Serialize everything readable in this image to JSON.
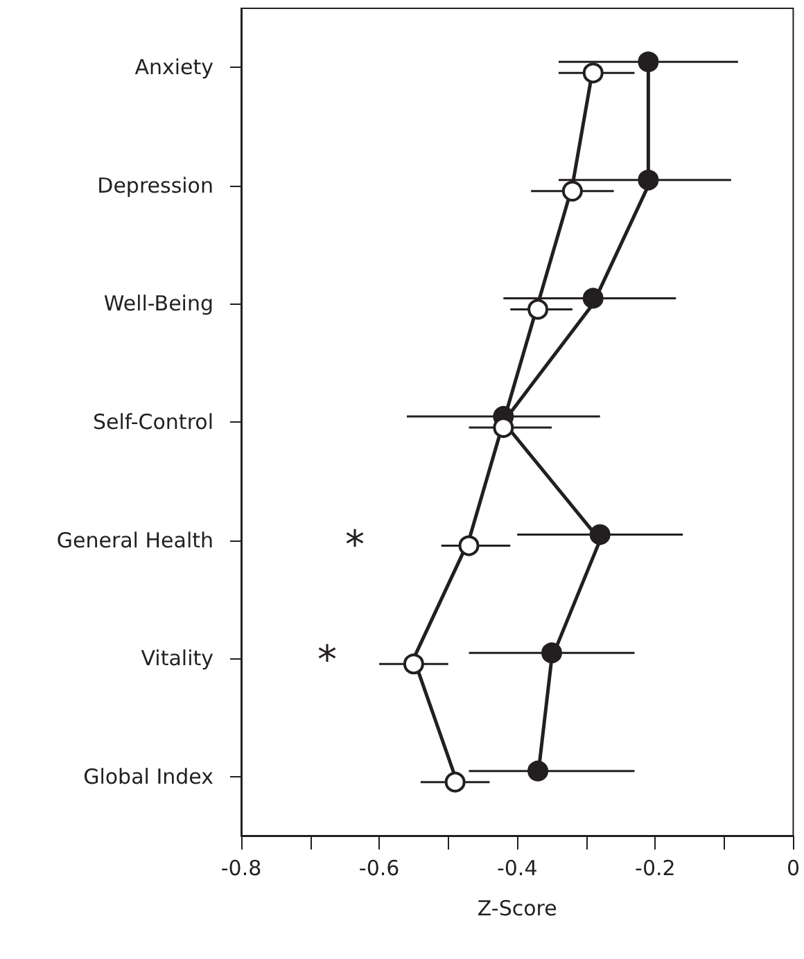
{
  "chart_data": {
    "type": "line",
    "orientation": "horizontal",
    "categories": [
      "Anxiety",
      "Depression",
      "Well-Being",
      "Self-Control",
      "General Health",
      "Vitality",
      "Global Index"
    ],
    "series": [
      {
        "color": "#231f20",
        "values": [
          -0.21,
          -0.21,
          -0.29,
          -0.42,
          -0.28,
          -0.35,
          -0.37
        ],
        "errors": [
          [
            -0.34,
            -0.08
          ],
          [
            -0.34,
            -0.09
          ],
          [
            -0.42,
            -0.17
          ],
          [
            -0.56,
            -0.28
          ],
          [
            -0.4,
            -0.16
          ],
          [
            -0.47,
            -0.23
          ],
          [
            -0.47,
            -0.23
          ]
        ]
      },
      {
        "color": "#ffffff",
        "values": [
          -0.29,
          -0.32,
          -0.37,
          -0.42,
          -0.47,
          -0.55,
          -0.49
        ],
        "errors": [
          [
            -0.34,
            -0.23
          ],
          [
            -0.38,
            -0.26
          ],
          [
            -0.41,
            -0.32
          ],
          [
            -0.47,
            -0.35
          ],
          [
            -0.51,
            -0.41
          ],
          [
            -0.6,
            -0.5
          ],
          [
            -0.54,
            -0.44
          ]
        ]
      }
    ],
    "xlabel": "Z-Score",
    "xlim": [
      -0.8,
      0
    ],
    "xticks": [
      -0.8,
      {
        "value": -0.7,
        "label": null
      },
      -0.6,
      {
        "value": -0.5,
        "label": null
      },
      -0.4,
      {
        "value": -0.3,
        "label": null
      },
      -0.2,
      {
        "value": -0.1,
        "label": null
      },
      0
    ],
    "annotations": [
      "*",
      "*"
    ],
    "marker": "circle",
    "line_style": "solid",
    "grid": false
  }
}
